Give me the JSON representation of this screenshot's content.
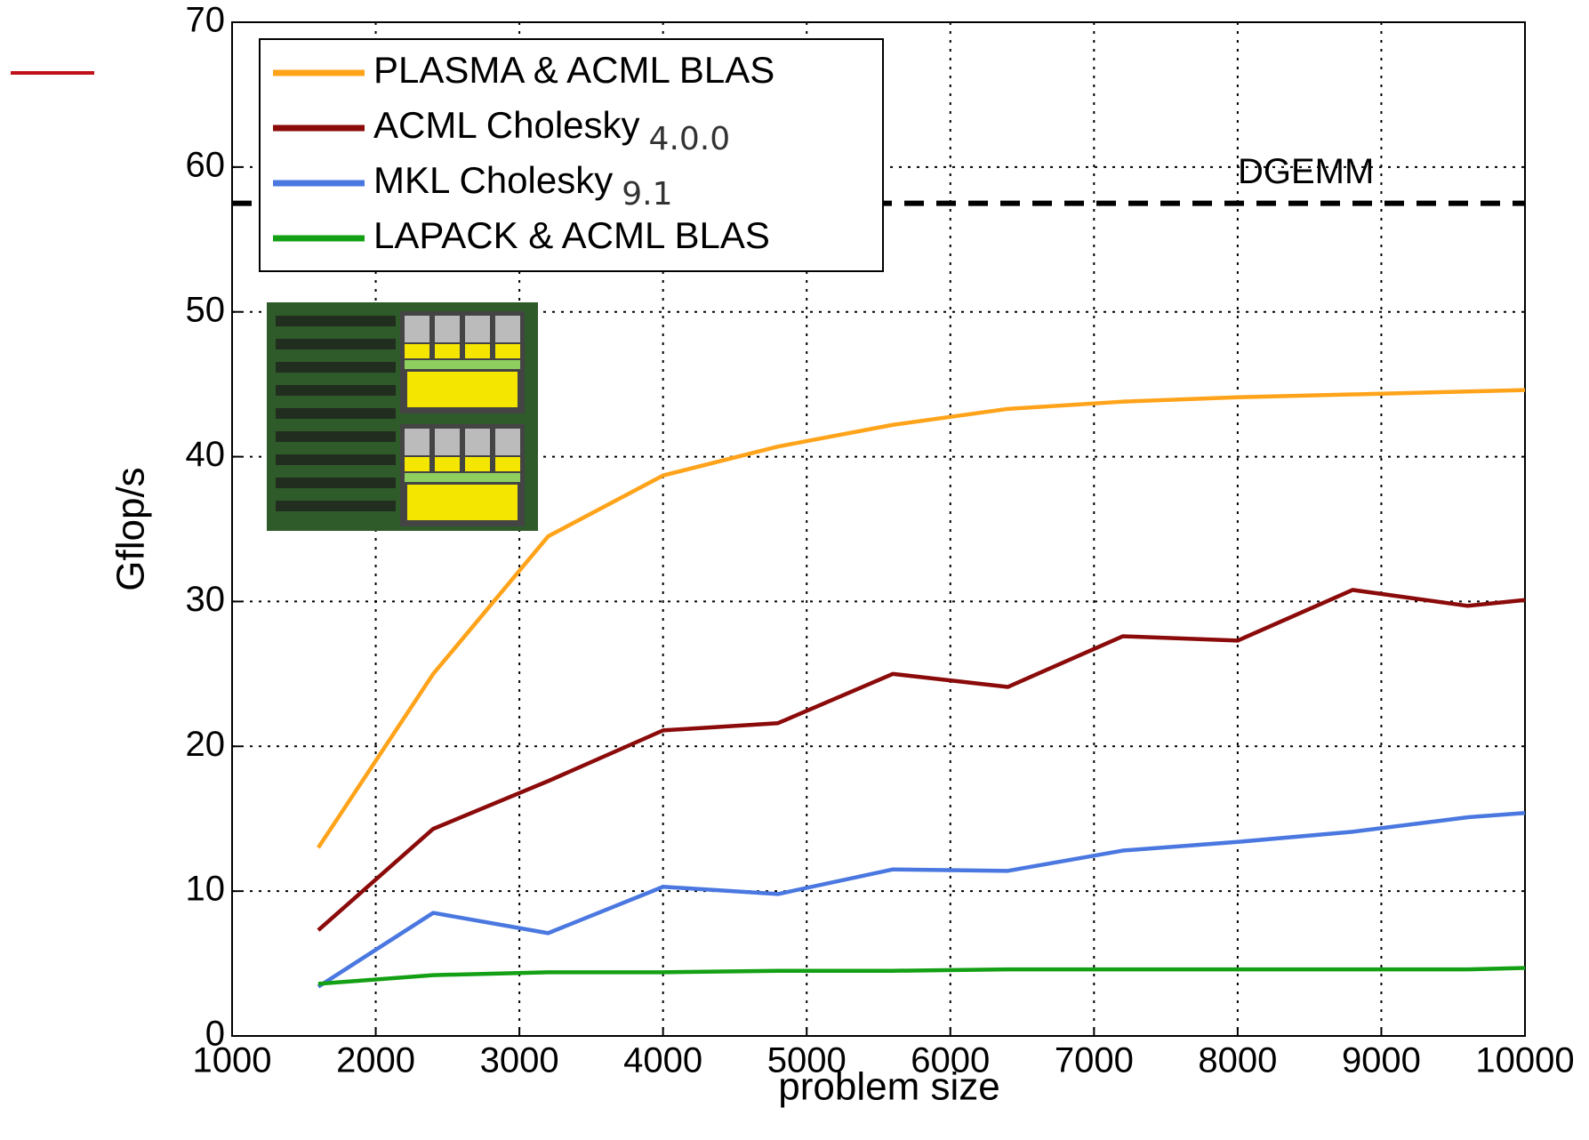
{
  "chart_data": {
    "type": "line",
    "x_label": "problem size",
    "y_label": "Gflop/s",
    "x": [
      1600,
      2400,
      3200,
      4000,
      4800,
      5600,
      6400,
      7200,
      8000,
      8800,
      9600,
      10000
    ],
    "series": [
      {
        "name": "PLASMA & ACML BLAS",
        "color": "#ffa31a",
        "values": [
          13,
          25,
          34.5,
          38.7,
          40.7,
          42.2,
          43.3,
          43.8,
          44.1,
          44.3,
          44.5,
          44.6
        ]
      },
      {
        "name": "ACML Cholesky",
        "annotation": "4.0.0",
        "color": "#8b0a0a",
        "values": [
          7.3,
          14.3,
          17.6,
          21.1,
          21.6,
          25,
          24.1,
          27.6,
          27.3,
          30.8,
          29.7,
          30.1
        ]
      },
      {
        "name": "MKL Cholesky",
        "annotation": "9.1",
        "color": "#4a78e0",
        "values": [
          3.4,
          8.5,
          7.1,
          10.3,
          9.8,
          11.5,
          11.4,
          12.8,
          13.4,
          14.1,
          15.1,
          15.4
        ]
      },
      {
        "name": "LAPACK & ACML BLAS",
        "color": "#14a014",
        "values": [
          3.6,
          4.2,
          4.4,
          4.4,
          4.5,
          4.5,
          4.6,
          4.6,
          4.6,
          4.6,
          4.6,
          4.7
        ]
      }
    ],
    "reference_line": {
      "label": "DGEMM",
      "value": 57.5
    },
    "xlim": [
      1000,
      10000
    ],
    "xticks": [
      1000,
      2000,
      3000,
      4000,
      5000,
      6000,
      7000,
      8000,
      9000,
      10000
    ],
    "ylim": [
      0,
      70
    ],
    "yticks": [
      0,
      10,
      20,
      30,
      40,
      50,
      60,
      70
    ],
    "grid": true
  }
}
